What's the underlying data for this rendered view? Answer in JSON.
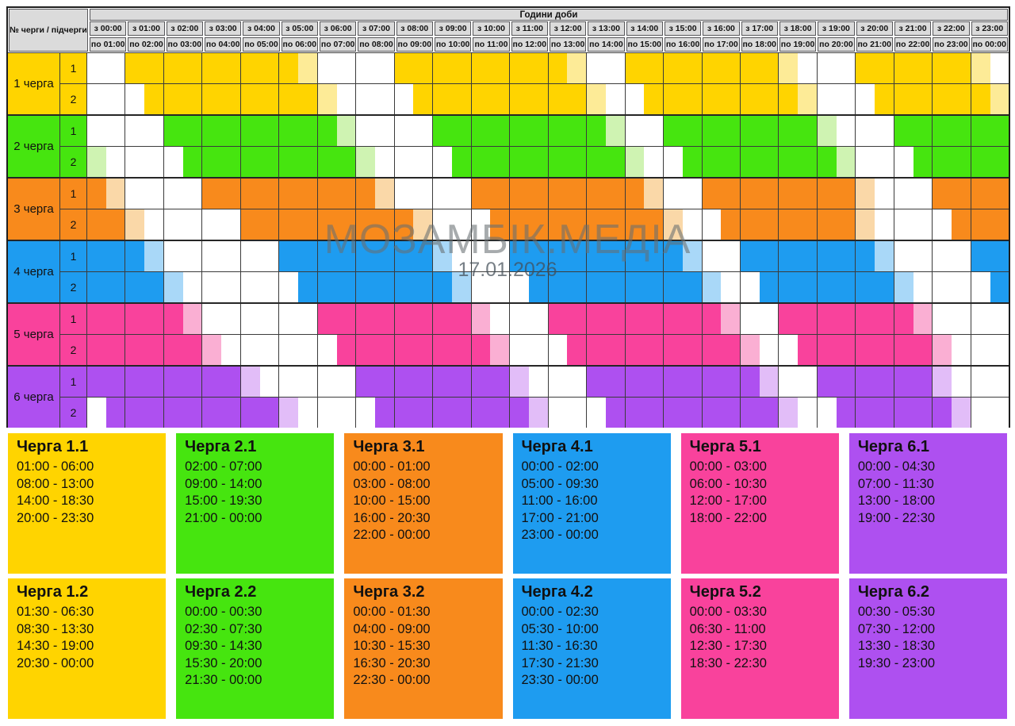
{
  "watermark": {
    "line1": "МОЗАМБІК.МЕДІА",
    "line2": "17.01.2026"
  },
  "chart_data": {
    "type": "heatmap",
    "title": "Години доби",
    "corner_label": "№ черги / підчерги",
    "slot_legend": {
      "F": "outage (full color)",
      "L": "outage last 30 min (light tint)",
      "W": "power on (white)"
    },
    "slot_minutes": 30,
    "columns": [
      {
        "from": "з 00:00",
        "to": "по 01:00"
      },
      {
        "from": "з 01:00",
        "to": "по 02:00"
      },
      {
        "from": "з 02:00",
        "to": "по 03:00"
      },
      {
        "from": "з 03:00",
        "to": "по 04:00"
      },
      {
        "from": "з 04:00",
        "to": "по 05:00"
      },
      {
        "from": "з 05:00",
        "to": "по 06:00"
      },
      {
        "from": "з 06:00",
        "to": "по 07:00"
      },
      {
        "from": "з 07:00",
        "to": "по 08:00"
      },
      {
        "from": "з 08:00",
        "to": "по 09:00"
      },
      {
        "from": "з 09:00",
        "to": "по 10:00"
      },
      {
        "from": "з 10:00",
        "to": "по 11:00"
      },
      {
        "from": "з 11:00",
        "to": "по 12:00"
      },
      {
        "from": "з 12:00",
        "to": "по 13:00"
      },
      {
        "from": "з 13:00",
        "to": "по 14:00"
      },
      {
        "from": "з 14:00",
        "to": "по 15:00"
      },
      {
        "from": "з 15:00",
        "to": "по 16:00"
      },
      {
        "from": "з 16:00",
        "to": "по 17:00"
      },
      {
        "from": "з 17:00",
        "to": "по 18:00"
      },
      {
        "from": "з 18:00",
        "to": "по 19:00"
      },
      {
        "from": "з 19:00",
        "to": "по 20:00"
      },
      {
        "from": "з 20:00",
        "to": "по 21:00"
      },
      {
        "from": "з 21:00",
        "to": "по 22:00"
      },
      {
        "from": "з 22:00",
        "to": "по 23:00"
      },
      {
        "from": "з 23:00",
        "to": "по 00:00"
      }
    ],
    "queues": [
      {
        "name": "1 черга",
        "color": "#FFD400",
        "light": "#FDEB97",
        "subqueues": [
          {
            "num": "1",
            "card_title": "Черга 1.1",
            "periods": [
              "01:00 - 06:00",
              "08:00 - 13:00",
              "14:00 - 18:30",
              "20:00 - 23:30"
            ],
            "slots": "WWFFFFFFFFFLWWWWFFFFFFFFFLWWFFFFFFFFLWWWFFFFFFLW"
          },
          {
            "num": "2",
            "card_title": "Черга 1.2",
            "periods": [
              "01:30 - 06:30",
              "08:30 - 13:30",
              "14:30 - 19:00",
              "20:30 - 00:00"
            ],
            "slots": "WWWFFFFFFFFFLWWWWFFFFFFFFFLWWFFFFFFFFLWWWFFFFFFL"
          }
        ]
      },
      {
        "name": "2 черга",
        "color": "#46E50F",
        "light": "#CFF3B2",
        "subqueues": [
          {
            "num": "1",
            "card_title": "Черга 2.1",
            "periods": [
              "02:00 - 07:00",
              "09:00 - 14:00",
              "15:00 - 19:30",
              "21:00 - 00:00"
            ],
            "slots": "WWWWFFFFFFFFFLWWWWFFFFFFFFFLWWFFFFFFFFLWWWFFFFFF"
          },
          {
            "num": "2",
            "card_title": "Черга 2.2",
            "periods": [
              "00:00 - 00:30",
              "02:30 - 07:30",
              "09:30 - 14:30",
              "15:30 - 20:00",
              "21:30 - 00:00"
            ],
            "slots": "LWWWWFFFFFFFFFLWWWWFFFFFFFFFLWWFFFFFFFFLWWWFFFFF"
          }
        ]
      },
      {
        "name": "3 черга",
        "color": "#F88A1C",
        "light": "#FAD8A8",
        "subqueues": [
          {
            "num": "1",
            "card_title": "Черга 3.1",
            "periods": [
              "00:00 - 01:00",
              "03:00 - 08:00",
              "10:00 - 15:00",
              "16:00 - 20:30",
              "22:00 - 00:00"
            ],
            "slots": "FLWWWWFFFFFFFFFLWWWWFFFFFFFFFLWWFFFFFFFFLWWWFFFF"
          },
          {
            "num": "2",
            "card_title": "Черга 3.2",
            "periods": [
              "00:00 - 01:30",
              "04:00 - 09:00",
              "10:30 - 15:30",
              "16:30 - 20:30",
              "22:30 - 00:00"
            ],
            "slots": "FFLWWWWWFFFFFFFFFLWWWFFFFFFFFFLWWFFFFFFFLWWWWFFF"
          }
        ]
      },
      {
        "name": "4 черга",
        "color": "#1E9CF0",
        "light": "#A9D8F8",
        "subqueues": [
          {
            "num": "1",
            "card_title": "Черга 4.1",
            "periods": [
              "00:00 - 02:00",
              "05:00 - 09:30",
              "11:00 - 16:00",
              "17:00 - 21:00",
              "23:00 - 00:00"
            ],
            "slots": "FFFLWWWWWWFFFFFFFFLWWWFFFFFFFFFLWWFFFFFFFLWWWWFF"
          },
          {
            "num": "2",
            "card_title": "Черга 4.2",
            "periods": [
              "00:00 - 02:30",
              "05:30 - 10:00",
              "11:30 - 16:30",
              "17:30 - 21:30",
              "23:30 - 00:00"
            ],
            "slots": "FFFFLWWWWWWFFFFFFFFLWWWFFFFFFFFFLWWFFFFFFFLWWWWF"
          }
        ]
      },
      {
        "name": "5 черга",
        "color": "#F9429C",
        "light": "#FAAFD3",
        "subqueues": [
          {
            "num": "1",
            "card_title": "Черга 5.1",
            "periods": [
              "00:00 - 03:00",
              "06:00 - 10:30",
              "12:00 - 17:00",
              "18:00 - 22:00"
            ],
            "slots": "FFFFFLWWWWWWFFFFFFFFLWWWFFFFFFFFFLWWFFFFFFFLWWWW"
          },
          {
            "num": "2",
            "card_title": "Черга 5.2",
            "periods": [
              "00:00 - 03:30",
              "06:30 - 11:00",
              "12:30 - 17:30",
              "18:30 - 22:30"
            ],
            "slots": "FFFFFFLWWWWWWFFFFFFFFLWWWFFFFFFFFFLWWFFFFFFFLWWW"
          }
        ]
      },
      {
        "name": "6 черга",
        "color": "#AE50F0",
        "light": "#E2BDF8",
        "subqueues": [
          {
            "num": "1",
            "card_title": "Черга 6.1",
            "periods": [
              "00:00 - 04:30",
              "07:00 - 11:30",
              "13:00 - 18:00",
              "19:00 - 22:30"
            ],
            "slots": "FFFFFFFFLWWWWWFFFFFFFFLWWWFFFFFFFFFLWWFFFFFFLWWW"
          },
          {
            "num": "2",
            "card_title": "Черга 6.2",
            "periods": [
              "00:30 - 05:30",
              "07:30 - 12:00",
              "13:30 - 18:30",
              "19:30 - 23:00"
            ],
            "slots": "WFFFFFFFFFLWWWWFFFFFFFFLWWWFFFFFFFFFLWWFFFFFFLWW"
          }
        ]
      }
    ]
  }
}
